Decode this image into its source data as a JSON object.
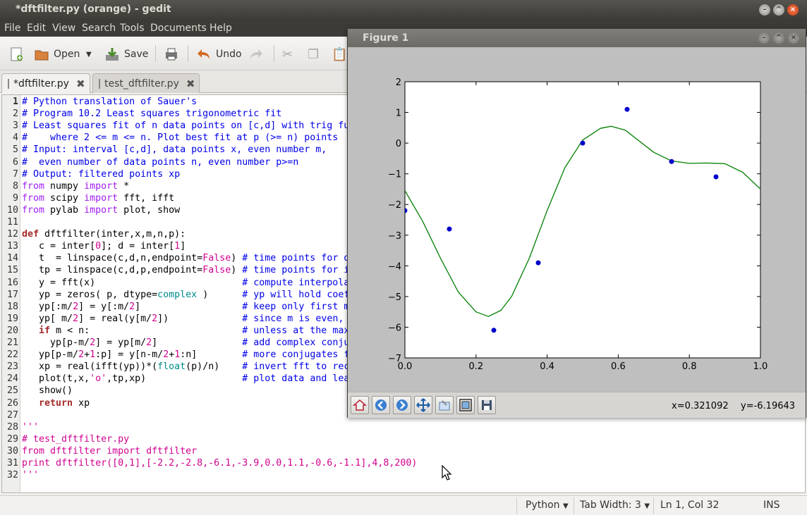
{
  "window": {
    "title": "*dftfilter.py (orange) - gedit"
  },
  "menu": [
    "File",
    "Edit",
    "View",
    "Search",
    "Tools",
    "Documents",
    "Help"
  ],
  "toolbar": {
    "open_label": "Open",
    "save_label": "Save",
    "undo_label": "Undo"
  },
  "tabs": [
    {
      "label": "*dftfilter.py"
    },
    {
      "label": "test_dftfilter.py"
    }
  ],
  "code_lines": [
    "# Python translation of Sauer's",
    "# Program 10.2 Least squares trigonometric fit",
    "# Least squares fit of n data points on [c,d] with trig fu",
    "#    where 2 <= m <= n. Plot best fit at p (>= n) points",
    "# Input: interval [c,d], data points x, even number m,",
    "#  even number of data points n, even number p>=n",
    "# Output: filtered points xp",
    "from numpy import *",
    "from scipy import fft, ifft",
    "from pylab import plot, show",
    "",
    "def dftfilter(inter,x,m,n,p):",
    "   c = inter[0]; d = inter[1]",
    "   t  = linspace(c,d,n,endpoint=False) # time points for d",
    "   tp = linspace(c,d,p,endpoint=False) # time points for i",
    "   y = fft(x)                          # compute interpola",
    "   yp = zeros( p, dtype=complex )      # yp will hold coef",
    "   yp[:m/2] = y[:m/2]                  # keep only first m",
    "   yp[ m/2] = real(y[m/2])             # since m is even,",
    "   if m < n:                           # unless at the max",
    "     yp[p-m/2] = yp[m/2]               # add complex conju",
    "   yp[p-m/2+1:p] = y[n-m/2+1:n]        # more conjugates f",
    "   xp = real(ifft(yp))*(float(p)/n)    # invert fft to rec",
    "   plot(t,x,'o',tp,xp)                 # plot data and lea",
    "   show()",
    "   return xp",
    "",
    "'''",
    "# test_dftfilter.py",
    "from dftfilter import dftfilter",
    "print dftfilter([0,1],[-2.2,-2.8,-6.1,-3.9,0.0,1.1,-0.6,-1.1],4,8,200)",
    "'''"
  ],
  "statusbar": {
    "language": "Python",
    "tab_width": "Tab Width:  3",
    "position": "Ln 1, Col 32",
    "mode": "INS"
  },
  "figure": {
    "title": "Figure 1",
    "coords": {
      "x": "x=0.321092",
      "y": "y=-6.19643"
    },
    "tools": [
      "home-icon",
      "back-icon",
      "forward-icon",
      "pan-icon",
      "configure-icon",
      "zoom-icon",
      "save-icon"
    ]
  },
  "chart_data": {
    "type": "scatter+line",
    "xlim": [
      0.0,
      1.0
    ],
    "ylim": [
      -7,
      2
    ],
    "x_ticks": [
      "0.0",
      "0.2",
      "0.4",
      "0.6",
      "0.8",
      "1.0"
    ],
    "y_ticks": [
      "2",
      "1",
      "0",
      "−1",
      "−2",
      "−3",
      "−4",
      "−5",
      "−6",
      "−7"
    ],
    "points": {
      "x": [
        0.0,
        0.125,
        0.25,
        0.375,
        0.5,
        0.625,
        0.75,
        0.875
      ],
      "y": [
        -2.2,
        -2.8,
        -6.1,
        -3.9,
        0.0,
        1.1,
        -0.6,
        -1.1
      ],
      "color": "#0000cc"
    },
    "fit": {
      "x": [
        0,
        0.05,
        0.1,
        0.15,
        0.2,
        0.235,
        0.27,
        0.3,
        0.35,
        0.4,
        0.45,
        0.5,
        0.55,
        0.58,
        0.62,
        0.65,
        0.7,
        0.75,
        0.8,
        0.85,
        0.9,
        0.95,
        1.0
      ],
      "y": [
        -1.55,
        -2.55,
        -3.75,
        -4.85,
        -5.5,
        -5.65,
        -5.45,
        -5.0,
        -3.75,
        -2.2,
        -0.8,
        0.1,
        0.48,
        0.55,
        0.42,
        0.15,
        -0.3,
        -0.58,
        -0.66,
        -0.65,
        -0.67,
        -0.95,
        -1.5
      ],
      "color": "#007f00"
    },
    "grid": false
  }
}
